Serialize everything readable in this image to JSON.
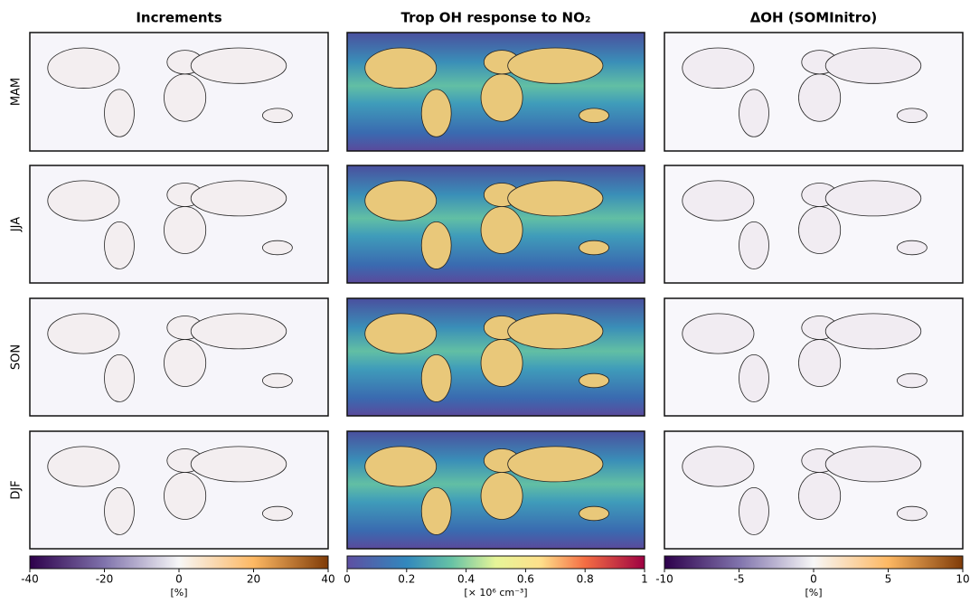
{
  "columns": [
    {
      "title": "Increments",
      "colorbar": {
        "lim": [
          -40,
          40
        ],
        "ticks": [
          -40,
          -20,
          0,
          20,
          40
        ],
        "label": "[%]"
      }
    },
    {
      "title": "Trop OH response to NO₂",
      "colorbar": {
        "lim": [
          0,
          1
        ],
        "ticks": [
          0,
          0.2,
          0.4,
          0.6,
          0.8,
          1
        ],
        "label": "[× 10⁶ cm⁻³]"
      }
    },
    {
      "title": "ΔOH (SOMInitro)",
      "colorbar": {
        "lim": [
          -10,
          10
        ],
        "ticks": [
          -10,
          -5,
          0,
          5,
          10
        ],
        "label": "[%]"
      }
    }
  ],
  "rows": [
    "MAM",
    "JJA",
    "SON",
    "DJF"
  ]
}
